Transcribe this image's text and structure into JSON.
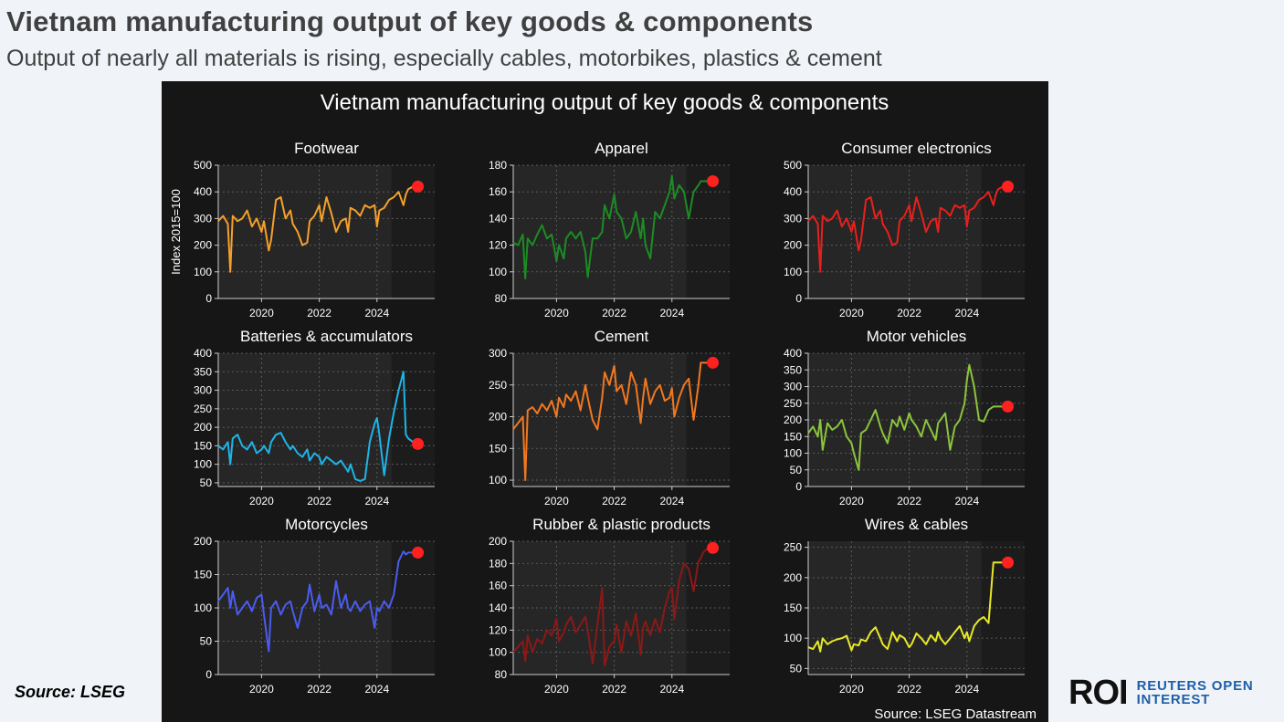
{
  "header": {
    "title": "Vietnam manufacturing output of key goods & components",
    "subtitle": "Output of nearly all materials is rising, especially cables, motorbikes, plastics & cement"
  },
  "footer": {
    "source": "Source: LSEG",
    "logo_mark": "ROI",
    "logo_line1": "REUTERS OPEN",
    "logo_line2": "INTEREST"
  },
  "chart_data": {
    "type": "line",
    "title": "Vietnam manufacturing output of key goods & components",
    "ylabel": "Index 2015=100",
    "source_note": "Source: LSEG Datastream",
    "x_ticks": [
      "2020",
      "2022",
      "2024"
    ],
    "panels": [
      {
        "title": "Footwear",
        "color": "#f5a02a",
        "ylim": [
          0,
          500
        ],
        "yticks": [
          0,
          100,
          200,
          300,
          400,
          500
        ],
        "x": [
          "2018-07",
          "2018-09",
          "2018-11",
          "2018-12",
          "2019-01",
          "2019-03",
          "2019-05",
          "2019-07",
          "2019-09",
          "2019-11",
          "2020-01",
          "2020-02",
          "2020-04",
          "2020-05",
          "2020-07",
          "2020-09",
          "2020-11",
          "2021-01",
          "2021-02",
          "2021-04",
          "2021-06",
          "2021-08",
          "2021-09",
          "2021-11",
          "2022-01",
          "2022-02",
          "2022-04",
          "2022-06",
          "2022-08",
          "2022-10",
          "2022-12",
          "2023-01",
          "2023-02",
          "2023-04",
          "2023-06",
          "2023-08",
          "2023-10",
          "2023-12",
          "2024-01",
          "2024-02",
          "2024-04",
          "2024-06",
          "2024-08",
          "2024-10",
          "2024-12",
          "2025-01",
          "2025-02",
          "2025-04",
          "2025-06"
        ],
        "values": [
          290,
          310,
          280,
          100,
          310,
          290,
          300,
          330,
          270,
          300,
          250,
          290,
          180,
          220,
          370,
          380,
          300,
          330,
          280,
          250,
          200,
          210,
          290,
          310,
          350,
          290,
          380,
          320,
          250,
          290,
          300,
          250,
          340,
          330,
          310,
          350,
          340,
          350,
          270,
          330,
          340,
          370,
          380,
          400,
          350,
          390,
          410,
          420,
          420
        ],
        "highlight": 420
      },
      {
        "title": "Apparel",
        "color": "#1c8c24",
        "ylim": [
          80,
          180
        ],
        "yticks": [
          80,
          100,
          120,
          140,
          160,
          180
        ],
        "x": [
          "2018-07",
          "2018-09",
          "2018-11",
          "2018-12",
          "2019-01",
          "2019-03",
          "2019-05",
          "2019-07",
          "2019-09",
          "2019-11",
          "2020-01",
          "2020-02",
          "2020-04",
          "2020-05",
          "2020-07",
          "2020-09",
          "2020-11",
          "2021-01",
          "2021-02",
          "2021-04",
          "2021-06",
          "2021-08",
          "2021-09",
          "2021-11",
          "2022-01",
          "2022-02",
          "2022-04",
          "2022-06",
          "2022-08",
          "2022-10",
          "2022-12",
          "2023-01",
          "2023-02",
          "2023-04",
          "2023-06",
          "2023-08",
          "2023-10",
          "2023-12",
          "2024-01",
          "2024-02",
          "2024-04",
          "2024-06",
          "2024-08",
          "2024-10",
          "2024-12",
          "2025-01",
          "2025-02",
          "2025-04",
          "2025-06"
        ],
        "values": [
          122,
          120,
          128,
          95,
          125,
          120,
          128,
          135,
          125,
          128,
          108,
          120,
          110,
          125,
          130,
          125,
          130,
          115,
          96,
          125,
          125,
          130,
          150,
          140,
          158,
          145,
          140,
          125,
          130,
          145,
          125,
          140,
          120,
          110,
          145,
          140,
          150,
          160,
          172,
          155,
          165,
          160,
          140,
          160,
          165,
          168,
          168,
          168,
          168
        ],
        "highlight": 168
      },
      {
        "title": "Consumer electronics",
        "color": "#e8201c",
        "ylim": [
          0,
          500
        ],
        "yticks": [
          0,
          100,
          200,
          300,
          400,
          500
        ],
        "x": [
          "2018-07",
          "2018-09",
          "2018-11",
          "2018-12",
          "2019-01",
          "2019-03",
          "2019-05",
          "2019-07",
          "2019-09",
          "2019-11",
          "2020-01",
          "2020-02",
          "2020-04",
          "2020-05",
          "2020-07",
          "2020-09",
          "2020-11",
          "2021-01",
          "2021-02",
          "2021-04",
          "2021-06",
          "2021-08",
          "2021-09",
          "2021-11",
          "2022-01",
          "2022-02",
          "2022-04",
          "2022-06",
          "2022-08",
          "2022-10",
          "2022-12",
          "2023-01",
          "2023-02",
          "2023-04",
          "2023-06",
          "2023-08",
          "2023-10",
          "2023-12",
          "2024-01",
          "2024-02",
          "2024-04",
          "2024-06",
          "2024-08",
          "2024-10",
          "2024-12",
          "2025-01",
          "2025-02",
          "2025-04",
          "2025-06"
        ],
        "values": [
          290,
          310,
          280,
          100,
          310,
          290,
          300,
          330,
          270,
          300,
          250,
          290,
          180,
          220,
          370,
          380,
          300,
          330,
          280,
          250,
          200,
          210,
          290,
          310,
          350,
          290,
          380,
          320,
          250,
          290,
          300,
          250,
          340,
          330,
          310,
          350,
          340,
          350,
          270,
          330,
          340,
          370,
          380,
          400,
          350,
          390,
          410,
          420,
          420
        ],
        "highlight": 420
      },
      {
        "title": "Batteries & accumulators",
        "color": "#1eb4e8",
        "ylim": [
          40,
          400
        ],
        "yticks": [
          50,
          100,
          150,
          200,
          250,
          300,
          350,
          400
        ],
        "x": [
          "2018-07",
          "2018-09",
          "2018-11",
          "2018-12",
          "2019-01",
          "2019-03",
          "2019-05",
          "2019-07",
          "2019-09",
          "2019-11",
          "2020-01",
          "2020-02",
          "2020-04",
          "2020-05",
          "2020-07",
          "2020-09",
          "2020-11",
          "2021-01",
          "2021-02",
          "2021-04",
          "2021-06",
          "2021-08",
          "2021-09",
          "2021-11",
          "2022-01",
          "2022-02",
          "2022-04",
          "2022-06",
          "2022-08",
          "2022-10",
          "2022-12",
          "2023-01",
          "2023-02",
          "2023-04",
          "2023-06",
          "2023-08",
          "2023-10",
          "2023-12",
          "2024-01",
          "2024-02",
          "2024-04",
          "2024-06",
          "2024-08",
          "2024-10",
          "2024-12",
          "2025-01",
          "2025-02",
          "2025-04",
          "2025-06"
        ],
        "values": [
          150,
          140,
          160,
          100,
          170,
          180,
          150,
          140,
          160,
          130,
          140,
          150,
          130,
          160,
          180,
          185,
          160,
          140,
          150,
          130,
          120,
          140,
          110,
          130,
          120,
          100,
          120,
          110,
          100,
          110,
          90,
          80,
          100,
          60,
          55,
          60,
          160,
          210,
          225,
          180,
          70,
          170,
          240,
          300,
          350,
          180,
          170,
          160,
          155
        ],
        "highlight": 155
      },
      {
        "title": "Cement",
        "color": "#f07820",
        "ylim": [
          90,
          300
        ],
        "yticks": [
          100,
          150,
          200,
          250,
          300
        ],
        "x": [
          "2018-07",
          "2018-09",
          "2018-11",
          "2018-12",
          "2019-01",
          "2019-03",
          "2019-05",
          "2019-07",
          "2019-09",
          "2019-11",
          "2020-01",
          "2020-02",
          "2020-04",
          "2020-05",
          "2020-07",
          "2020-09",
          "2020-11",
          "2021-01",
          "2021-02",
          "2021-04",
          "2021-06",
          "2021-08",
          "2021-09",
          "2021-11",
          "2022-01",
          "2022-02",
          "2022-04",
          "2022-06",
          "2022-08",
          "2022-10",
          "2022-12",
          "2023-01",
          "2023-02",
          "2023-04",
          "2023-06",
          "2023-08",
          "2023-10",
          "2023-12",
          "2024-01",
          "2024-02",
          "2024-04",
          "2024-06",
          "2024-08",
          "2024-10",
          "2024-12",
          "2025-01",
          "2025-02",
          "2025-04",
          "2025-06"
        ],
        "values": [
          180,
          190,
          200,
          100,
          210,
          215,
          205,
          220,
          210,
          225,
          200,
          230,
          215,
          235,
          225,
          240,
          210,
          250,
          230,
          195,
          180,
          230,
          270,
          250,
          280,
          240,
          250,
          220,
          270,
          250,
          190,
          230,
          260,
          220,
          240,
          250,
          225,
          230,
          245,
          200,
          230,
          250,
          260,
          195,
          250,
          285,
          285,
          285,
          285
        ],
        "highlight": 285
      },
      {
        "title": "Motor vehicles",
        "color": "#8cc43c",
        "ylim": [
          0,
          400
        ],
        "yticks": [
          0,
          50,
          100,
          150,
          200,
          250,
          300,
          350,
          400
        ],
        "x": [
          "2018-07",
          "2018-09",
          "2018-11",
          "2018-12",
          "2019-01",
          "2019-03",
          "2019-05",
          "2019-07",
          "2019-09",
          "2019-11",
          "2020-01",
          "2020-02",
          "2020-04",
          "2020-05",
          "2020-07",
          "2020-09",
          "2020-11",
          "2021-01",
          "2021-02",
          "2021-04",
          "2021-06",
          "2021-08",
          "2021-09",
          "2021-11",
          "2022-01",
          "2022-02",
          "2022-04",
          "2022-06",
          "2022-08",
          "2022-10",
          "2022-12",
          "2023-01",
          "2023-02",
          "2023-04",
          "2023-06",
          "2023-08",
          "2023-10",
          "2023-12",
          "2024-01",
          "2024-02",
          "2024-04",
          "2024-06",
          "2024-08",
          "2024-10",
          "2024-12",
          "2025-01",
          "2025-02",
          "2025-04",
          "2025-06"
        ],
        "values": [
          160,
          180,
          150,
          200,
          110,
          190,
          170,
          180,
          200,
          150,
          130,
          100,
          50,
          160,
          170,
          200,
          230,
          180,
          160,
          130,
          200,
          180,
          210,
          170,
          220,
          200,
          180,
          150,
          200,
          170,
          140,
          190,
          200,
          220,
          110,
          180,
          200,
          250,
          320,
          365,
          300,
          200,
          195,
          230,
          240,
          240,
          240,
          240,
          240
        ],
        "highlight": 240
      },
      {
        "title": "Motorcycles",
        "color": "#4a5cf0",
        "ylim": [
          0,
          200
        ],
        "yticks": [
          0,
          50,
          100,
          150,
          200
        ],
        "x": [
          "2018-07",
          "2018-09",
          "2018-11",
          "2018-12",
          "2019-01",
          "2019-03",
          "2019-05",
          "2019-07",
          "2019-09",
          "2019-11",
          "2020-01",
          "2020-02",
          "2020-04",
          "2020-05",
          "2020-07",
          "2020-09",
          "2020-11",
          "2021-01",
          "2021-02",
          "2021-04",
          "2021-06",
          "2021-08",
          "2021-09",
          "2021-11",
          "2022-01",
          "2022-02",
          "2022-04",
          "2022-06",
          "2022-08",
          "2022-10",
          "2022-12",
          "2023-01",
          "2023-02",
          "2023-04",
          "2023-06",
          "2023-08",
          "2023-10",
          "2023-12",
          "2024-01",
          "2024-02",
          "2024-04",
          "2024-06",
          "2024-08",
          "2024-10",
          "2024-12",
          "2025-01",
          "2025-02",
          "2025-04",
          "2025-06"
        ],
        "values": [
          110,
          120,
          130,
          100,
          125,
          90,
          100,
          110,
          95,
          115,
          120,
          90,
          35,
          100,
          110,
          90,
          105,
          110,
          95,
          70,
          100,
          110,
          135,
          95,
          120,
          100,
          105,
          90,
          140,
          100,
          120,
          100,
          95,
          110,
          95,
          105,
          110,
          70,
          100,
          95,
          110,
          100,
          120,
          170,
          185,
          180,
          183,
          183,
          183
        ],
        "highlight": 183
      },
      {
        "title": "Rubber & plastic products",
        "color": "#8c1818",
        "ylim": [
          80,
          200
        ],
        "yticks": [
          80,
          100,
          120,
          140,
          160,
          180,
          200
        ],
        "x": [
          "2018-07",
          "2018-09",
          "2018-11",
          "2018-12",
          "2019-01",
          "2019-03",
          "2019-05",
          "2019-07",
          "2019-09",
          "2019-11",
          "2020-01",
          "2020-02",
          "2020-04",
          "2020-05",
          "2020-07",
          "2020-09",
          "2020-11",
          "2021-01",
          "2021-02",
          "2021-04",
          "2021-06",
          "2021-08",
          "2021-09",
          "2021-11",
          "2022-01",
          "2022-02",
          "2022-04",
          "2022-06",
          "2022-08",
          "2022-10",
          "2022-12",
          "2023-01",
          "2023-02",
          "2023-04",
          "2023-06",
          "2023-08",
          "2023-10",
          "2023-12",
          "2024-01",
          "2024-02",
          "2024-04",
          "2024-06",
          "2024-08",
          "2024-10",
          "2024-12",
          "2025-01",
          "2025-02",
          "2025-04",
          "2025-06"
        ],
        "values": [
          100,
          105,
          110,
          92,
          115,
          100,
          112,
          108,
          120,
          115,
          130,
          110,
          118,
          125,
          132,
          118,
          125,
          132,
          120,
          90,
          125,
          158,
          88,
          105,
          110,
          125,
          100,
          128,
          115,
          135,
          98,
          122,
          128,
          115,
          130,
          118,
          140,
          155,
          158,
          130,
          165,
          180,
          175,
          155,
          182,
          185,
          190,
          194,
          194
        ],
        "highlight": 194
      },
      {
        "title": "Wires & cables",
        "color": "#e8e828",
        "ylim": [
          40,
          260
        ],
        "yticks": [
          50,
          100,
          150,
          200,
          250
        ],
        "x": [
          "2018-07",
          "2018-09",
          "2018-11",
          "2018-12",
          "2019-01",
          "2019-03",
          "2019-05",
          "2019-07",
          "2019-09",
          "2019-11",
          "2020-01",
          "2020-02",
          "2020-04",
          "2020-05",
          "2020-07",
          "2020-09",
          "2020-11",
          "2021-01",
          "2021-02",
          "2021-04",
          "2021-06",
          "2021-08",
          "2021-09",
          "2021-11",
          "2022-01",
          "2022-02",
          "2022-04",
          "2022-06",
          "2022-08",
          "2022-10",
          "2022-12",
          "2023-01",
          "2023-02",
          "2023-04",
          "2023-06",
          "2023-08",
          "2023-10",
          "2023-12",
          "2024-01",
          "2024-02",
          "2024-04",
          "2024-06",
          "2024-08",
          "2024-10",
          "2024-12",
          "2025-01",
          "2025-02",
          "2025-04",
          "2025-06"
        ],
        "values": [
          85,
          82,
          95,
          78,
          100,
          90,
          95,
          98,
          100,
          104,
          80,
          90,
          88,
          98,
          95,
          110,
          118,
          100,
          90,
          82,
          110,
          95,
          105,
          100,
          85,
          90,
          108,
          100,
          90,
          105,
          95,
          110,
          100,
          90,
          100,
          110,
          120,
          100,
          110,
          95,
          120,
          130,
          135,
          125,
          225,
          225,
          225,
          225,
          225
        ],
        "highlight": 225
      }
    ]
  }
}
